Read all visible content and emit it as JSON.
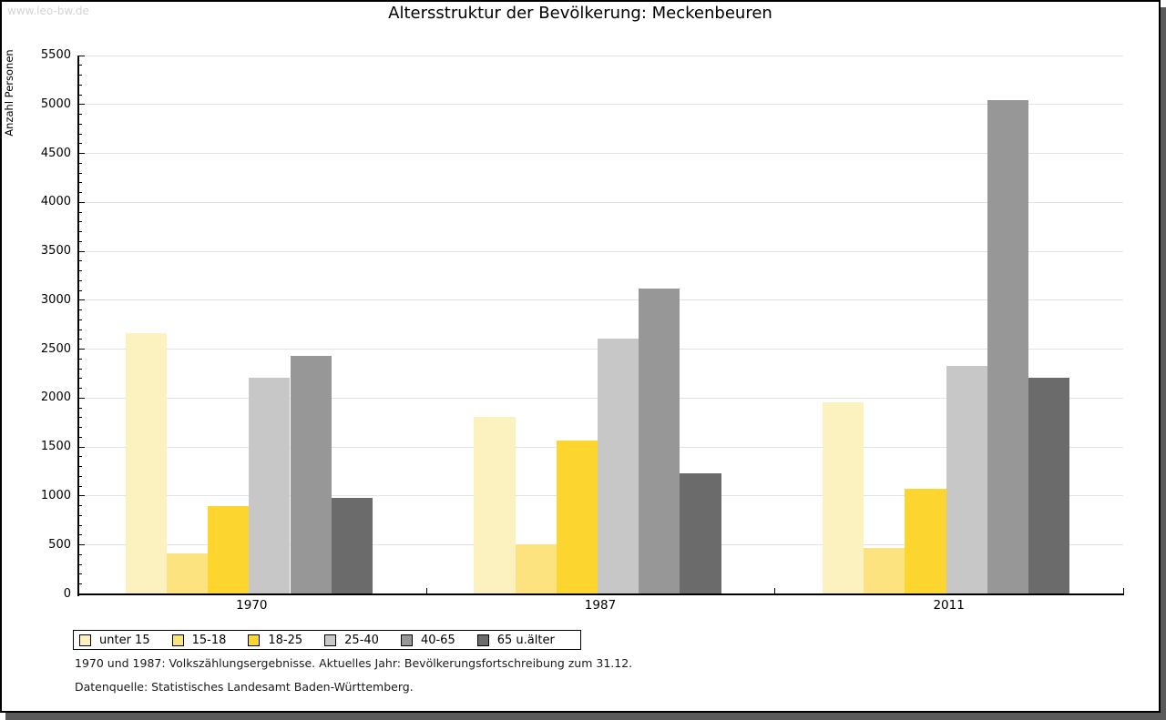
{
  "header": {
    "watermark": "www.leo-bw.de"
  },
  "chart_data": {
    "type": "bar",
    "title": "Altersstruktur der Bevölkerung: Meckenbeuren",
    "ylabel": "Anzahl Personen",
    "xlabel": "",
    "categories": [
      "1970",
      "1987",
      "2011"
    ],
    "series": [
      {
        "name": "unter 15",
        "color": "#FBF2C0",
        "values": [
          2660,
          1805,
          1960
        ]
      },
      {
        "name": "15-18",
        "color": "#FCE37F",
        "values": [
          415,
          505,
          470
        ]
      },
      {
        "name": "18-25",
        "color": "#FDD52F",
        "values": [
          895,
          1570,
          1070
        ]
      },
      {
        "name": "25-40",
        "color": "#C7C7C7",
        "values": [
          2210,
          2605,
          2330
        ]
      },
      {
        "name": "40-65",
        "color": "#979797",
        "values": [
          2430,
          3115,
          5040
        ]
      },
      {
        "name": "65 u.älter",
        "color": "#6B6B6B",
        "values": [
          985,
          1235,
          2210
        ]
      }
    ],
    "ylim": [
      0,
      5500
    ],
    "y_major_step": 500,
    "y_minor_step": 100,
    "grid": true,
    "gridline_color": "#e3e3e3",
    "legend_position": "bottom-left"
  },
  "footer": {
    "note1": "1970 und 1987: Volkszählungsergebnisse. Aktuelles Jahr: Bevölkerungsfortschreibung zum 31.12.",
    "note2": "Datenquelle: Statistisches Landesamt Baden-Württemberg."
  }
}
